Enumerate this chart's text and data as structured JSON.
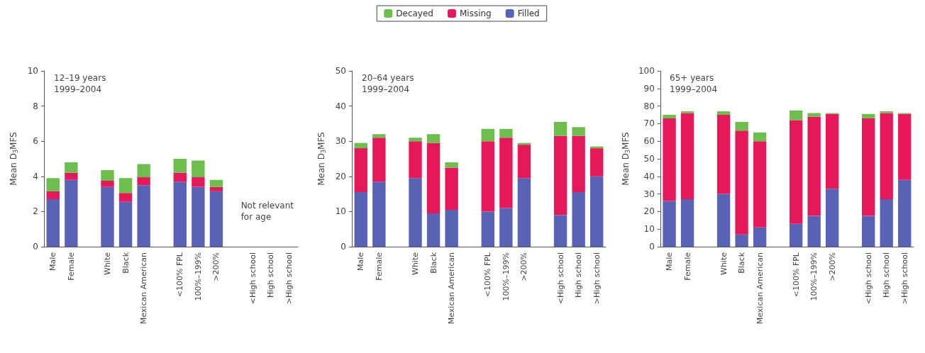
{
  "chart_data": [
    {
      "type": "bar",
      "stacked": true,
      "ylabel": "Mean D$_{3}$MFS",
      "annotations": [
        "12–19 years\n1999–2004",
        "Not relevant\nfor age"
      ],
      "categories": [
        "Male",
        "Female",
        null,
        "White",
        "Black",
        "Mexican American",
        null,
        "<100% FPL",
        "100%–199%",
        ">200%",
        null,
        "<High school",
        "High school",
        ">High school"
      ],
      "ylim": [
        0,
        10
      ],
      "yticks": [
        0,
        2,
        4,
        6,
        8,
        10
      ],
      "grid": false,
      "legend": false,
      "series": [
        {
          "color": "#5a62b5",
          "values": [
            2.7,
            3.8,
            null,
            3.4,
            2.55,
            3.5,
            null,
            3.7,
            3.4,
            3.15,
            null,
            null,
            null,
            null
          ]
        },
        {
          "color": "#e5195a",
          "values": [
            0.45,
            0.4,
            null,
            0.35,
            0.5,
            0.45,
            null,
            0.5,
            0.55,
            0.25,
            null,
            null,
            null,
            null
          ]
        },
        {
          "color": "#6dbd4f",
          "values": [
            0.75,
            0.6,
            null,
            0.6,
            0.85,
            0.75,
            null,
            0.8,
            0.95,
            0.4,
            null,
            null,
            null,
            null
          ]
        }
      ]
    },
    {
      "type": "bar",
      "stacked": true,
      "ylabel": "Mean D$_{3}$MFS",
      "annotations": [
        "20–64 years\n1999–2004"
      ],
      "categories": [
        "Male",
        "Female",
        null,
        "White",
        "Black",
        "Mexican American",
        null,
        "<100% FPL",
        "100%–199%",
        ">200%",
        null,
        "<High school",
        "High school",
        ">High school"
      ],
      "ylim": [
        0,
        50
      ],
      "yticks": [
        0,
        10,
        20,
        30,
        40,
        50
      ],
      "grid": false,
      "legend": "top",
      "series": [
        {
          "name": "Filled",
          "color": "#5a62b5",
          "values": [
            15.5,
            18.5,
            null,
            19.5,
            9.5,
            10.5,
            null,
            10,
            11,
            19.5,
            null,
            9,
            15.5,
            20
          ]
        },
        {
          "name": "Missing",
          "color": "#e5195a",
          "values": [
            12.5,
            12.5,
            null,
            10.5,
            20,
            12,
            null,
            20,
            20,
            9.5,
            null,
            22.5,
            16,
            8
          ]
        },
        {
          "name": "Decayed",
          "color": "#6dbd4f",
          "values": [
            1.5,
            1,
            null,
            1,
            2.5,
            1.5,
            null,
            3.5,
            2.5,
            0.5,
            null,
            4,
            2.5,
            0.5
          ]
        }
      ]
    },
    {
      "type": "bar",
      "stacked": true,
      "ylabel": "Mean D$_{3}$MFS",
      "annotations": [
        "65+ years\n1999–2004"
      ],
      "categories": [
        "Male",
        "Female",
        null,
        "White",
        "Black",
        "Mexican American",
        null,
        "<100% FPL",
        "100%–199%",
        ">200%",
        null,
        "<High school",
        "High school",
        ">High school"
      ],
      "ylim": [
        0,
        100
      ],
      "yticks": [
        0,
        10,
        20,
        30,
        40,
        50,
        60,
        70,
        80,
        90,
        100
      ],
      "grid": false,
      "legend": false,
      "series": [
        {
          "color": "#5a62b5",
          "values": [
            26,
            27,
            null,
            30,
            7,
            11,
            null,
            13,
            17.5,
            33,
            null,
            17.5,
            27,
            38
          ]
        },
        {
          "color": "#e5195a",
          "values": [
            47,
            49,
            null,
            45,
            59,
            49,
            null,
            59,
            56.5,
            42.5,
            null,
            55.5,
            49,
            37.5
          ]
        },
        {
          "color": "#6dbd4f",
          "values": [
            2,
            1,
            null,
            2,
            5,
            5,
            null,
            5.5,
            2,
            0.5,
            null,
            2.5,
            1,
            0.5
          ]
        }
      ]
    }
  ]
}
